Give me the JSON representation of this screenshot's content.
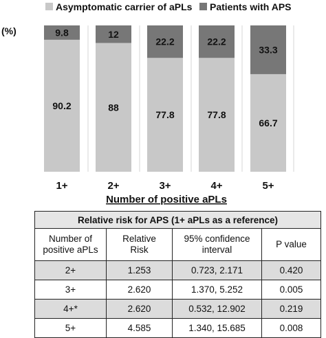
{
  "chart_data": {
    "type": "bar",
    "stacked": true,
    "y_unit_label": "(%)",
    "xlabel": "Number of positive aPLs",
    "ylim": [
      0,
      100
    ],
    "categories": [
      "1+",
      "2+",
      "3+",
      "4+",
      "5+"
    ],
    "series": [
      {
        "name": "Asymptomatic carrier of aPLs",
        "color": "#c8c8c8",
        "values": [
          90.2,
          88,
          77.8,
          77.8,
          66.7
        ],
        "labels": [
          "90.2",
          "88",
          "77.8",
          "77.8",
          "66.7"
        ]
      },
      {
        "name": "Patients with APS",
        "color": "#777777",
        "values": [
          9.8,
          12,
          22.2,
          22.2,
          33.3
        ],
        "labels": [
          "9.8",
          "12",
          "22.2",
          "22.2",
          "33.3"
        ]
      }
    ],
    "legend_position": "top",
    "grid": false
  },
  "table": {
    "title": "Relative risk for APS  (1+ aPLs as a reference)",
    "headers": [
      "Number of\npositive aPLs",
      "Relative\nRisk",
      "95% confidence\ninterval",
      "P value"
    ],
    "rows": [
      [
        "2+",
        "1.253",
        "0.723, 2.171",
        "0.420"
      ],
      [
        "3+",
        "2.620",
        "1.370, 5.252",
        "0.005"
      ],
      [
        "4+*",
        "2.620",
        "0.532, 12.902",
        "0.219"
      ],
      [
        "5+",
        "4.585",
        "1.340, 15.685",
        "0.008"
      ]
    ]
  }
}
